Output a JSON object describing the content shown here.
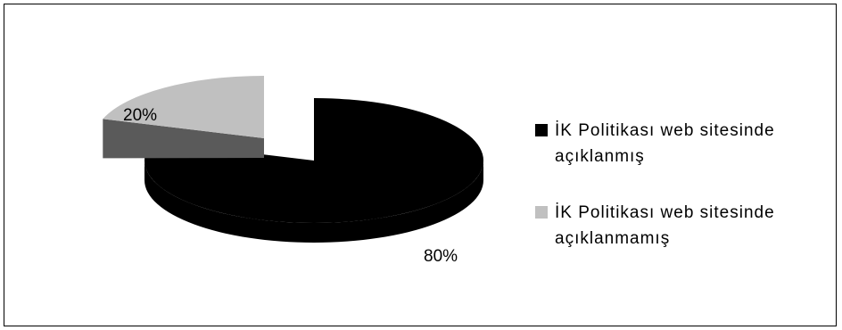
{
  "chart_data": {
    "type": "pie",
    "style": "3d-exploded",
    "series": [
      {
        "name": "İK Politikası web sitesinde açıklanmış",
        "value": 80,
        "label": "80%",
        "color": "#000000"
      },
      {
        "name": "İK Politikası web sitesinde açıklanmamış",
        "value": 20,
        "label": "20%",
        "color": "#c0c0c0"
      }
    ],
    "legend_position": "right"
  }
}
